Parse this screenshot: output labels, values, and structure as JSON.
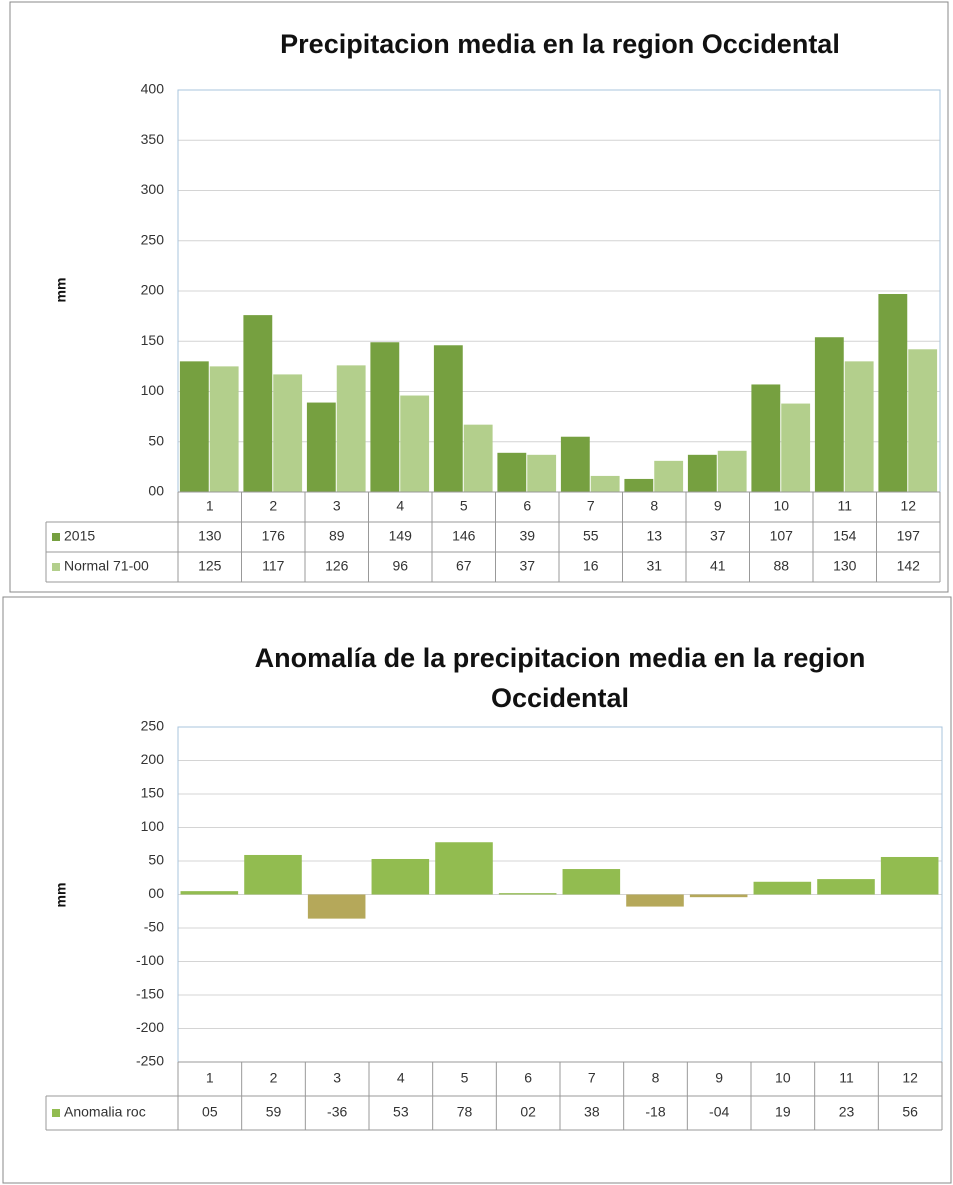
{
  "chart_data": [
    {
      "type": "bar",
      "title": "Precipitacion media en la region Occidental",
      "y_label": "mm",
      "categories": [
        "1",
        "2",
        "3",
        "4",
        "5",
        "6",
        "7",
        "8",
        "9",
        "10",
        "11",
        "12"
      ],
      "series": [
        {
          "name": "2015",
          "color": "#76a040",
          "values": [
            130,
            176,
            89,
            149,
            146,
            39,
            55,
            13,
            37,
            107,
            154,
            197
          ]
        },
        {
          "name": "Normal 71-00",
          "color": "#b3cf8c",
          "values": [
            125,
            117,
            126,
            96,
            67,
            37,
            16,
            31,
            41,
            88,
            130,
            142
          ]
        }
      ],
      "ylim": [
        0,
        400
      ],
      "yticks": [
        {
          "value": 0,
          "label": "00"
        },
        50,
        100,
        150,
        200,
        250,
        300,
        350,
        400
      ],
      "grid": true
    },
    {
      "type": "bar",
      "title": "Anomalía de la precipitacion media en la region Occidental",
      "y_label": "mm",
      "categories": [
        "1",
        "2",
        "3",
        "4",
        "5",
        "6",
        "7",
        "8",
        "9",
        "10",
        "11",
        "12"
      ],
      "series": [
        {
          "name": "Anomalia roc",
          "color": "#92bc50",
          "negative_color": "#b5a85a",
          "values": [
            5,
            59,
            -36,
            53,
            78,
            2,
            38,
            -18,
            -4,
            19,
            23,
            56
          ],
          "value_labels": [
            "05",
            "59",
            "-36",
            "53",
            "78",
            "02",
            "38",
            "-18",
            "-04",
            "19",
            "23",
            "56"
          ]
        }
      ],
      "ylim": [
        -250,
        250
      ],
      "yticks": [
        -250,
        -200,
        -150,
        -100,
        -50,
        {
          "value": 0,
          "label": "00"
        },
        50,
        100,
        150,
        200,
        250
      ],
      "grid": true
    }
  ]
}
